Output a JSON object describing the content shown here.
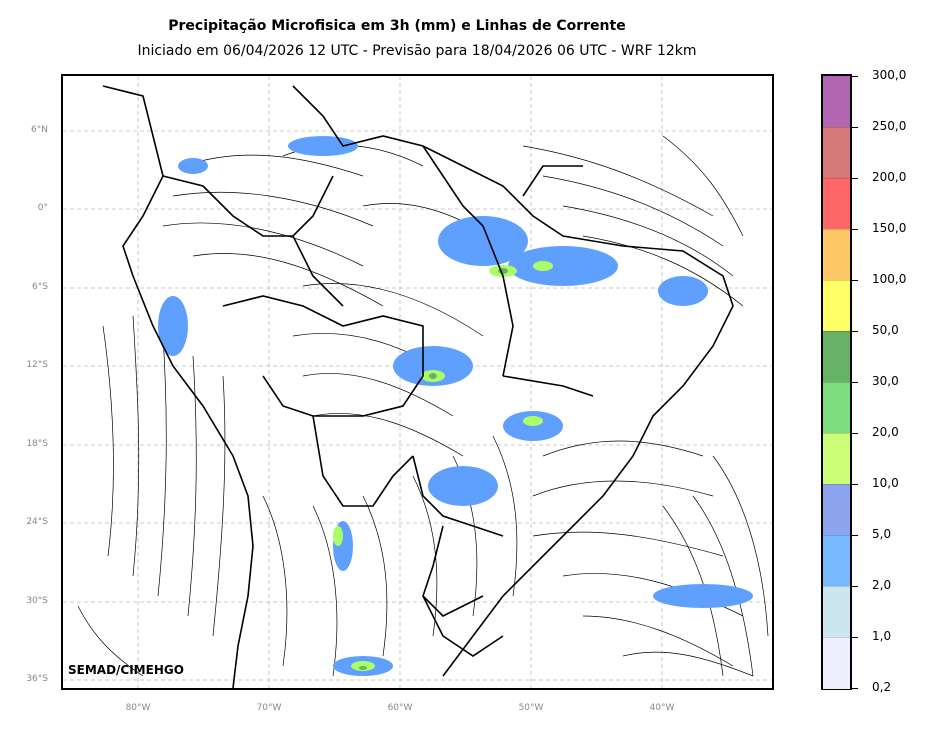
{
  "title": "Precipitação Microfisica em 3h (mm) e Linhas de Corrente",
  "subtitle": "Iniciado em 06/04/2026 12 UTC - Previsão para 18/04/2026 06 UTC - WRF 12km",
  "credit": "SEMAD/CIMEHGO",
  "lat_labels": [
    "6°N",
    "0°",
    "6°S",
    "12°S",
    "18°S",
    "24°S",
    "30°S",
    "36°S"
  ],
  "lon_labels": [
    "80°W",
    "70°W",
    "60°W",
    "50°W",
    "40°W"
  ],
  "colorbar": {
    "labels": [
      "300,0",
      "250,0",
      "200,0",
      "150,0",
      "100,0",
      "50,0",
      "30,0",
      "20,0",
      "10,0",
      "5,0",
      "2,0",
      "1,0",
      "0,2"
    ],
    "colors": [
      "#b266b2",
      "#d47a7a",
      "#ff6666",
      "#ffc866",
      "#ffff66",
      "#66b266",
      "#7ddc7d",
      "#ccff77",
      "#8ca5ee",
      "#77b9ff",
      "#cce6f0",
      "#eeeefc"
    ]
  },
  "colors": {
    "grid": "#bbbbbb",
    "border": "#000000",
    "streamline": "#000000",
    "precip_light": "#5fa0ff",
    "precip_mid": "#aaff66",
    "precip_high": "#66b266"
  }
}
